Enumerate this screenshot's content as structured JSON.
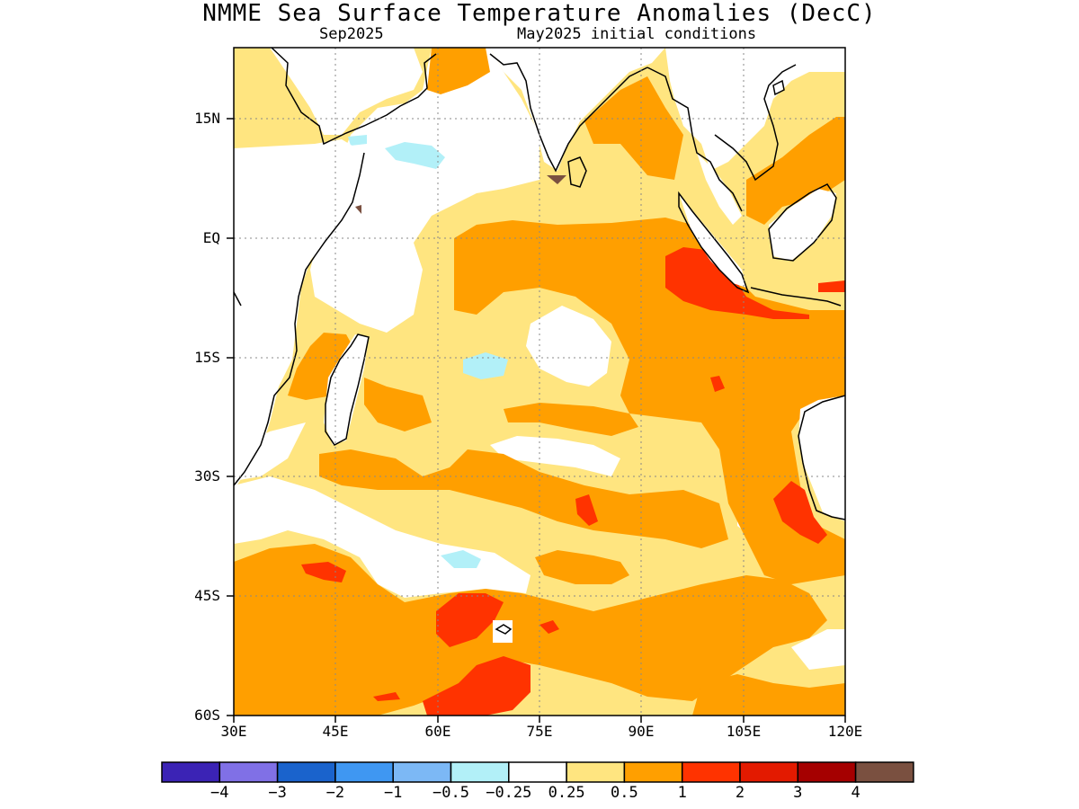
{
  "header": {
    "title": "NMME Sea Surface Temperature Anomalies (DecC)",
    "target_month": "Sep2025",
    "init_conditions": "May2025 initial conditions"
  },
  "map": {
    "lat_ticks": [
      "15N",
      "EQ",
      "15S",
      "30S",
      "45S",
      "60S"
    ],
    "lon_ticks": [
      "30E",
      "45E",
      "60E",
      "75E",
      "90E",
      "105E",
      "120E"
    ],
    "lat_range": [
      -60,
      24
    ],
    "lon_range": [
      30,
      120
    ]
  },
  "colorbar": {
    "colors": [
      "#3b23b5",
      "#8070e6",
      "#1a63cc",
      "#3f97f2",
      "#7cb8f5",
      "#b2f0f8",
      "#ffffff",
      "#ffe580",
      "#ff9f00",
      "#ff3300",
      "#e31a00",
      "#a50000",
      "#7a5040"
    ],
    "labels": [
      "−4",
      "−3",
      "−2",
      "−1",
      "−0.5",
      "−0.25",
      "0.25",
      "0.5",
      "1",
      "2",
      "3",
      "4"
    ]
  }
}
